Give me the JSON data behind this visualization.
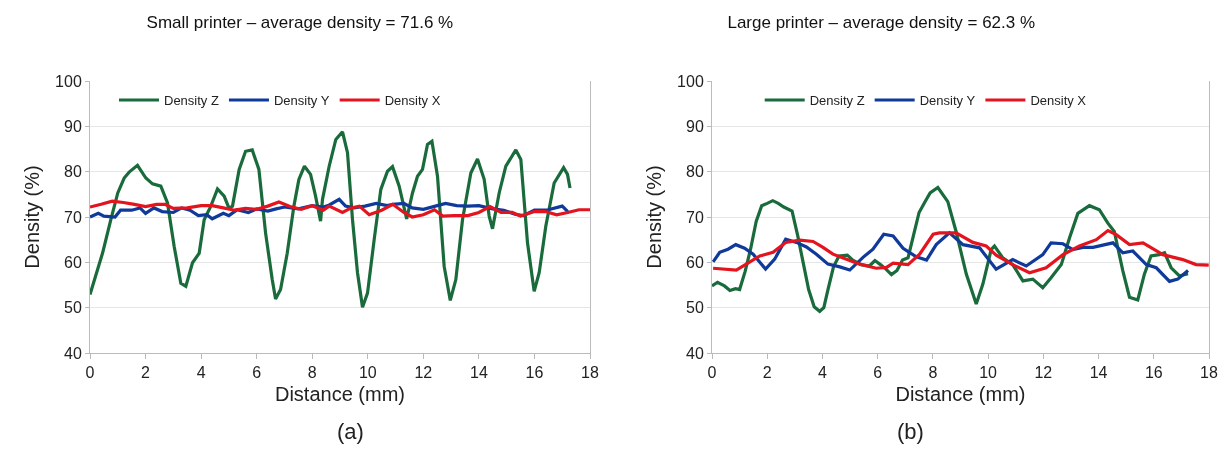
{
  "chart_data": [
    {
      "type": "line",
      "title": "Small printer – average density = 71.6 %",
      "xlabel": "Distance (mm)",
      "ylabel": "Density (%)",
      "xlim": [
        0,
        18
      ],
      "xticks": [
        0,
        2,
        4,
        6,
        8,
        10,
        12,
        14,
        16,
        18
      ],
      "ylim": [
        40,
        100
      ],
      "yticks": [
        40,
        50,
        60,
        70,
        80,
        90,
        100
      ],
      "grid": "y",
      "legend": "top",
      "marker": "none",
      "line_style": "solid",
      "annotations": [
        "(a)"
      ],
      "series": [
        {
          "name": "Density Z",
          "color": "#1a6b3c",
          "x": [
            0,
            0.45,
            0.75,
            1.0,
            1.23,
            1.41,
            1.71,
            2.01,
            2.25,
            2.55,
            2.79,
            3.03,
            3.27,
            3.45,
            3.69,
            3.93,
            4.11,
            4.35,
            4.59,
            4.83,
            5.0,
            5.13,
            5.37,
            5.6,
            5.84,
            6.08,
            6.32,
            6.56,
            6.68,
            6.86,
            7.1,
            7.34,
            7.52,
            7.72,
            7.94,
            8.12,
            8.3,
            8.37,
            8.61,
            8.85,
            9.09,
            9.27,
            9.45,
            9.63,
            9.81,
            9.99,
            10.23,
            10.47,
            10.71,
            10.89,
            11.13,
            11.4,
            11.61,
            11.79,
            11.97,
            12.15,
            12.31,
            12.51,
            12.75,
            12.97,
            13.17,
            13.41,
            13.71,
            13.95,
            14.19,
            14.37,
            14.49,
            14.73,
            14.97,
            15.33,
            15.51,
            15.75,
            15.99,
            16.17,
            16.41,
            16.71,
            17.05,
            17.19,
            17.28
          ],
          "values": [
            52.9,
            62,
            69.4,
            75.3,
            78.6,
            79.9,
            81.4,
            78.6,
            77.3,
            76.8,
            73.1,
            63.5,
            55.4,
            54.7,
            59.9,
            62,
            69.4,
            72.4,
            76.2,
            74.6,
            72,
            72.4,
            80.5,
            84.5,
            84.8,
            80.5,
            66.5,
            56.2,
            51.9,
            54,
            62,
            72.4,
            78.3,
            81.2,
            79.4,
            74.6,
            69.1,
            73.9,
            81.2,
            87.1,
            88.8,
            84.2,
            69.4,
            57.7,
            50.1,
            53.2,
            65,
            76.1,
            80.1,
            81.1,
            76.8,
            69.6,
            75.3,
            79,
            80.5,
            86,
            86.7,
            79,
            59.1,
            51.6,
            56.2,
            69.4,
            79.7,
            82.8,
            78.3,
            70.2,
            67.4,
            75.3,
            81.2,
            84.8,
            82.7,
            64.3,
            53.6,
            57.7,
            68,
            77.5,
            80.9,
            79.4,
            76.4
          ]
        },
        {
          "name": "Density Y",
          "color": "#0f3a9a",
          "x": [
            0,
            0.3,
            0.5,
            0.9,
            1.1,
            1.5,
            1.8,
            2.0,
            2.3,
            2.6,
            3.0,
            3.3,
            3.6,
            3.9,
            4.2,
            4.4,
            4.8,
            5.0,
            5.3,
            5.7,
            6.0,
            6.4,
            6.7,
            7.0,
            7.5,
            8.0,
            8.4,
            8.6,
            8.97,
            9.2,
            9.5,
            9.9,
            10.3,
            10.7,
            10.9,
            11.3,
            11.6,
            12.0,
            12.5,
            12.8,
            13.2,
            13.6,
            14.0,
            14.5,
            14.9,
            15.3,
            15.6,
            16.0,
            16.5,
            17.0,
            17.2
          ],
          "values": [
            70,
            70.8,
            70.2,
            70,
            71.5,
            71.5,
            72,
            70.8,
            72,
            71.2,
            71,
            72,
            71.5,
            70.3,
            70.5,
            69.6,
            70.8,
            70.3,
            71.6,
            71,
            71.8,
            71.3,
            71.8,
            72.2,
            71.8,
            72.5,
            72.2,
            72.6,
            73.9,
            72.4,
            72,
            72.4,
            73,
            72.5,
            72.8,
            73,
            72,
            71.7,
            72.5,
            73,
            72.5,
            72.4,
            72.5,
            71.8,
            71.5,
            70.6,
            70.3,
            71.5,
            71.6,
            72.4,
            71.2
          ]
        },
        {
          "name": "Density X",
          "color": "#e3141e",
          "x": [
            0,
            0.4,
            0.8,
            1.2,
            1.6,
            2.0,
            2.4,
            2.7,
            3.0,
            3.5,
            4.0,
            4.4,
            4.8,
            5.2,
            5.6,
            6.0,
            6.4,
            6.8,
            7.2,
            7.6,
            8.0,
            8.4,
            8.61,
            9.09,
            9.4,
            9.7,
            10.05,
            10.5,
            10.9,
            11.3,
            11.6,
            12.0,
            12.4,
            12.7,
            13.1,
            13.6,
            14.0,
            14.4,
            14.8,
            15.2,
            15.5,
            16.0,
            16.4,
            16.8,
            17.2,
            17.6,
            18
          ],
          "values": [
            72.2,
            72.8,
            73.5,
            73.2,
            72.8,
            72.3,
            72.8,
            72.8,
            71.9,
            72,
            72.5,
            72.5,
            72,
            71.5,
            71.9,
            71.7,
            72.4,
            73.3,
            72.3,
            71.7,
            72.5,
            71.5,
            72.4,
            71,
            72,
            72.4,
            70.5,
            71.5,
            72.8,
            71,
            70,
            70.5,
            71.6,
            70.2,
            70.3,
            70.3,
            71,
            72.3,
            71,
            71,
            70.2,
            71.2,
            71.2,
            70.5,
            71,
            71.6,
            71.6
          ]
        }
      ]
    },
    {
      "type": "line",
      "title": "Large printer – average density = 62.3 %",
      "xlabel": "Distance (mm)",
      "ylabel": "Density (%)",
      "xlim": [
        0,
        18
      ],
      "xticks": [
        0,
        2,
        4,
        6,
        8,
        10,
        12,
        14,
        16,
        18
      ],
      "ylim": [
        40,
        100
      ],
      "yticks": [
        40,
        50,
        60,
        70,
        80,
        90,
        100
      ],
      "grid": "y",
      "legend": "top",
      "marker": "none",
      "line_style": "solid",
      "annotations": [
        "(b)"
      ],
      "series": [
        {
          "name": "Density Z",
          "color": "#1a6b3c",
          "x": [
            0,
            0.2,
            0.45,
            0.65,
            0.85,
            1.0,
            1.2,
            1.4,
            1.6,
            1.8,
            2.0,
            2.2,
            2.4,
            2.6,
            2.9,
            3.1,
            3.3,
            3.5,
            3.7,
            3.9,
            4.05,
            4.2,
            4.4,
            4.6,
            4.9,
            5.1,
            5.4,
            5.7,
            5.9,
            6.1,
            6.3,
            6.5,
            6.7,
            6.9,
            7.1,
            7.3,
            7.5,
            7.7,
            7.9,
            8.18,
            8.54,
            8.84,
            9.21,
            9.57,
            9.81,
            10.11,
            10.23,
            10.53,
            10.89,
            11.26,
            11.62,
            11.98,
            12.28,
            12.65,
            12.95,
            13.25,
            13.67,
            14.03,
            14.33,
            14.57,
            14.88,
            15.12,
            15.42,
            15.66,
            15.9,
            16.2,
            16.39,
            16.63,
            16.93,
            17.24
          ],
          "values": [
            54.8,
            55.6,
            54.8,
            53.8,
            54.2,
            54,
            58,
            63,
            69,
            72.5,
            73,
            73.6,
            73,
            72.2,
            71.3,
            66,
            60,
            54,
            50.2,
            49.2,
            50,
            54,
            59,
            61.4,
            61.6,
            60.5,
            59.5,
            59.2,
            60.4,
            59.5,
            58.5,
            57.3,
            58.2,
            60.5,
            61,
            66,
            71,
            73.2,
            75.3,
            76.5,
            73.4,
            66.8,
            57.4,
            50.8,
            55.2,
            62.8,
            63.6,
            61,
            59.5,
            55.9,
            56.3,
            54.4,
            56.6,
            59.5,
            65.4,
            70.8,
            72.5,
            71.6,
            68.7,
            66.8,
            58.1,
            52.3,
            51.7,
            57.4,
            61.4,
            61.7,
            62.1,
            58.8,
            57,
            57.5
          ]
        },
        {
          "name": "Density Y",
          "color": "#0f3a9a",
          "x": [
            0.04,
            0.28,
            0.58,
            0.86,
            1.18,
            1.49,
            1.94,
            2.27,
            2.67,
            3.06,
            3.42,
            3.78,
            4.2,
            4.63,
            4.99,
            5.47,
            5.83,
            6.22,
            6.56,
            6.92,
            7.4,
            7.77,
            8.12,
            8.6,
            9.09,
            9.69,
            10.29,
            10.89,
            11.38,
            11.98,
            12.28,
            12.71,
            13.07,
            13.43,
            13.8,
            14.52,
            14.88,
            15.24,
            15.73,
            16.09,
            16.57,
            16.87,
            17.24
          ],
          "values": [
            60.1,
            62.2,
            62.9,
            63.9,
            63.1,
            61.8,
            58.5,
            60.7,
            65.1,
            64.4,
            63.4,
            61.8,
            59.6,
            59,
            58.3,
            61.1,
            62.9,
            66.2,
            65.8,
            63.1,
            61.2,
            60.5,
            63.9,
            66.5,
            63.9,
            63.2,
            58.5,
            60.6,
            59.2,
            61.7,
            64.3,
            64.1,
            62.8,
            63.3,
            63.3,
            64.3,
            62.1,
            62.5,
            59.5,
            58.8,
            55.8,
            56.3,
            58.2
          ]
        },
        {
          "name": "Density X",
          "color": "#e3141e",
          "x": [
            0.04,
            0.88,
            1.24,
            1.73,
            2.21,
            2.67,
            3.18,
            3.66,
            4.02,
            4.38,
            4.87,
            5.35,
            5.95,
            6.32,
            6.56,
            7.1,
            7.52,
            8.01,
            8.24,
            8.84,
            9.45,
            9.93,
            10.29,
            10.89,
            11.5,
            12.1,
            12.71,
            13.31,
            13.92,
            14.34,
            14.64,
            15.12,
            15.61,
            16.33,
            17.05,
            17.53,
            17.99
          ],
          "values": [
            58.7,
            58.3,
            59.6,
            61.4,
            62.2,
            64.4,
            64.9,
            64.6,
            63.3,
            61.8,
            60.7,
            59.6,
            58.7,
            58.9,
            59.8,
            59.5,
            61.8,
            66.2,
            66.5,
            66.5,
            64.4,
            63.6,
            61.6,
            59.5,
            57.7,
            58.8,
            61.7,
            63.6,
            65,
            67,
            66.1,
            63.9,
            64.3,
            61.7,
            60.6,
            59.5,
            59.4
          ]
        }
      ]
    }
  ]
}
